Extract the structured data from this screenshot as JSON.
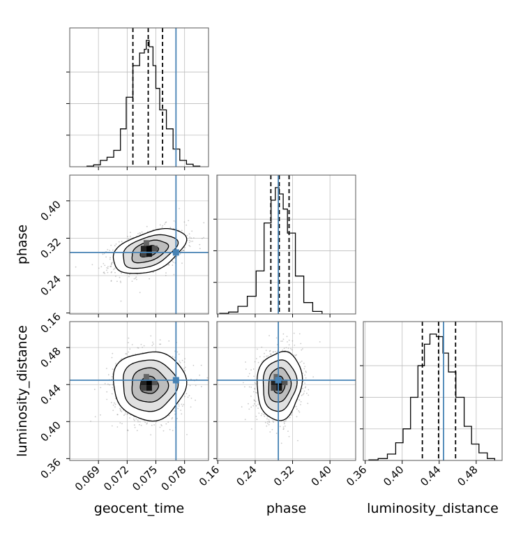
{
  "chart_data": {
    "type": "corner",
    "parameters": [
      "geocent_time",
      "phase",
      "luminosity_distance"
    ],
    "truth_values": {
      "geocent_time": 0.0771,
      "phase": 0.2895,
      "luminosity_distance": 0.4447
    },
    "truth_color": "#4682b4",
    "quantiles_dashed": {
      "geocent_time": [
        0.0726,
        0.0742,
        0.0757
      ],
      "phase": [
        0.2735,
        0.2915,
        0.3125
      ],
      "luminosity_distance": [
        0.4218,
        0.4393,
        0.4577
      ]
    },
    "marginals": [
      {
        "parameter": "geocent_time",
        "bin_edges": [
          0.0678,
          0.0685,
          0.0692,
          0.0699,
          0.0706,
          0.0713,
          0.0719,
          0.0726,
          0.0733,
          0.0736,
          0.0738,
          0.074,
          0.0743,
          0.0747,
          0.075,
          0.0754,
          0.0761,
          0.0768,
          0.0775,
          0.0782,
          0.0789,
          0.0796
        ],
        "counts": [
          0.005,
          0.015,
          0.05,
          0.075,
          0.13,
          0.3,
          0.55,
          0.8,
          0.9,
          0.9,
          0.93,
          1.0,
          0.95,
          0.8,
          0.62,
          0.45,
          0.3,
          0.14,
          0.05,
          0.02,
          0.005
        ]
      },
      {
        "parameter": "phase",
        "bin_edges": [
          0.164,
          0.183,
          0.203,
          0.223,
          0.242,
          0.259,
          0.274,
          0.283,
          0.291,
          0.3,
          0.309,
          0.326,
          0.344,
          0.363,
          0.383
        ],
        "counts": [
          0.005,
          0.015,
          0.06,
          0.14,
          0.34,
          0.72,
          0.9,
          1.0,
          0.95,
          0.83,
          0.64,
          0.3,
          0.09,
          0.02
        ]
      },
      {
        "parameter": "luminosity_distance",
        "bin_edges": [
          0.364,
          0.374,
          0.384,
          0.393,
          0.401,
          0.409,
          0.417,
          0.424,
          0.43,
          0.437,
          0.444,
          0.45,
          0.458,
          0.467,
          0.475,
          0.483,
          0.492,
          0.5
        ],
        "counts": [
          0.005,
          0.015,
          0.05,
          0.14,
          0.25,
          0.5,
          0.75,
          0.92,
          1.0,
          0.98,
          0.85,
          0.7,
          0.5,
          0.27,
          0.13,
          0.06,
          0.015
        ]
      }
    ],
    "pair_panels": [
      {
        "x_parameter": "geocent_time",
        "y_parameter": "phase",
        "center": [
          0.0743,
          0.292
        ],
        "spread": [
          0.0019,
          0.024
        ],
        "correlation": 0.45,
        "contour_levels_sigma": [
          0.5,
          1.0,
          1.5,
          2.0
        ],
        "scatter_points": 1100
      },
      {
        "x_parameter": "geocent_time",
        "y_parameter": "luminosity_distance",
        "center": [
          0.0743,
          0.4393
        ],
        "spread": [
          0.0019,
          0.0185
        ],
        "correlation": 0.0,
        "contour_levels_sigma": [
          0.5,
          1.0,
          1.5,
          2.0
        ],
        "scatter_points": 1100
      },
      {
        "x_parameter": "phase",
        "y_parameter": "luminosity_distance",
        "center": [
          0.2915,
          0.4393
        ],
        "spread": [
          0.024,
          0.0185
        ],
        "correlation": 0.1,
        "contour_levels_sigma": [
          0.5,
          1.0,
          1.5,
          2.0
        ],
        "scatter_points": 1100
      }
    ],
    "axes": {
      "geocent_time": {
        "range": [
          0.066,
          0.0805
        ],
        "ticks": [
          0.069,
          0.072,
          0.075,
          0.078
        ],
        "tick_labels": [
          "0.069",
          "0.072",
          "0.075",
          "0.078"
        ],
        "label": "geocent_time"
      },
      "phase": {
        "range": [
          0.158,
          0.455
        ],
        "ticks": [
          0.16,
          0.24,
          0.32,
          0.4
        ],
        "tick_labels": [
          "0.16",
          "0.24",
          "0.32",
          "0.40"
        ],
        "label": "phase"
      },
      "luminosity_distance": {
        "range": [
          0.358,
          0.508
        ],
        "ticks": [
          0.36,
          0.4,
          0.44,
          0.48
        ],
        "tick_labels": [
          "0.36",
          "0.40",
          "0.44",
          "0.48"
        ],
        "label": "luminosity_distance"
      }
    },
    "grid": true
  }
}
